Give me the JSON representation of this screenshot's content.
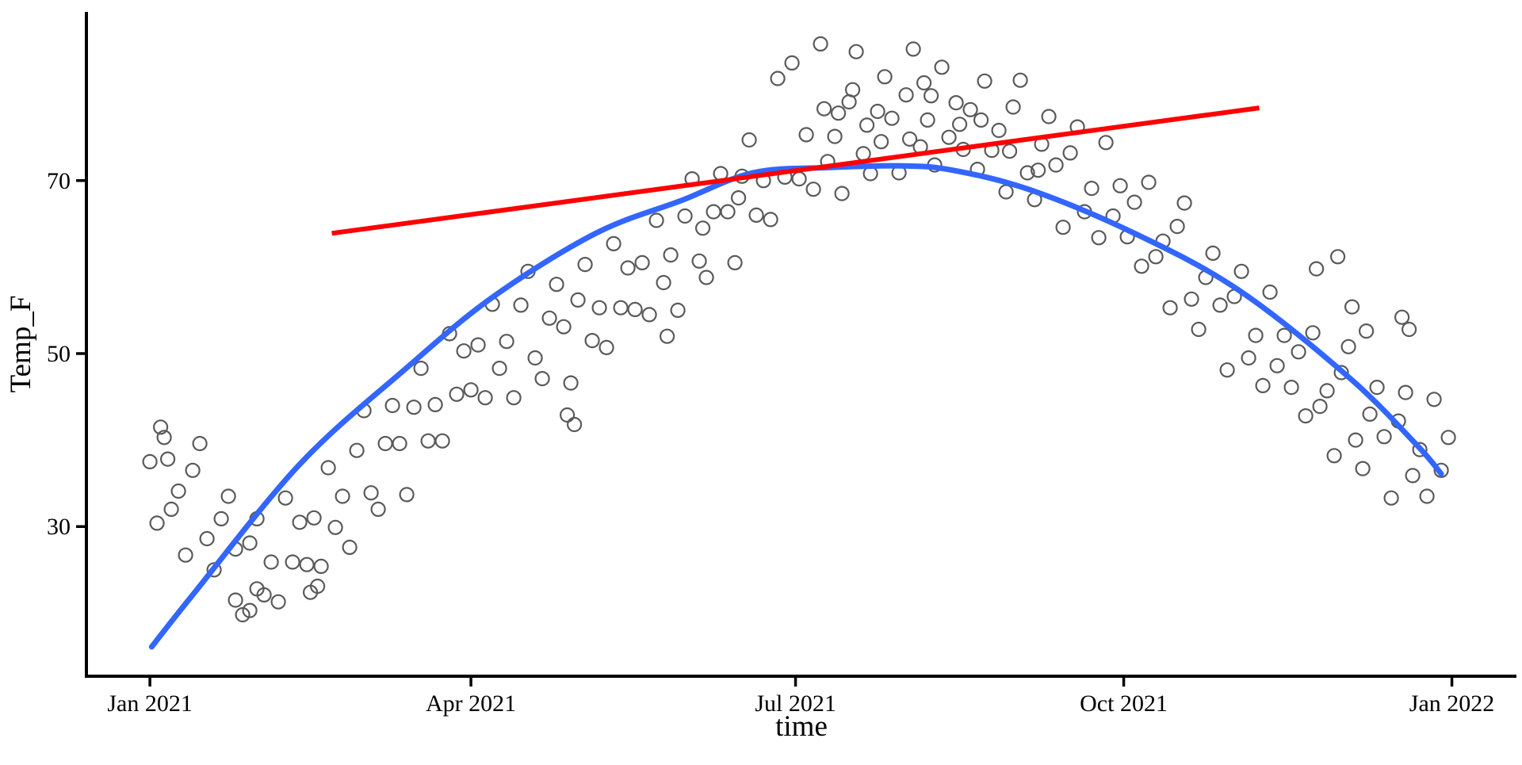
{
  "chart_data": {
    "type": "scatter",
    "title": "",
    "xlabel": "time",
    "ylabel": "Temp_F",
    "grid": false,
    "legend": "none",
    "background": "#FFFFFF",
    "axis_color": "#000000",
    "x_axis": {
      "unit": "days_since_2021-01-01",
      "domain": [
        -17.8,
        383.1
      ],
      "ticks": [
        {
          "day": 0,
          "label": "Jan 2021"
        },
        {
          "day": 90,
          "label": "Apr 2021"
        },
        {
          "day": 181,
          "label": "Jul 2021"
        },
        {
          "day": 273,
          "label": "Oct 2021"
        },
        {
          "day": 365,
          "label": "Jan 2022"
        }
      ]
    },
    "y_axis": {
      "unit": "degrees_F",
      "domain": [
        12.7,
        89.5
      ],
      "ticks": [
        {
          "value": 30,
          "label": "30"
        },
        {
          "value": 50,
          "label": "50"
        },
        {
          "value": 70,
          "label": "70"
        }
      ]
    },
    "series": [
      {
        "name": "daily-temperature-points",
        "kind": "scatter",
        "marker": "open-circle",
        "color": "#5a5a5a",
        "marker_radius": 8.5,
        "marker_stroke": 2.2,
        "points": [
          [
            0,
            37.5
          ],
          [
            2,
            30.4
          ],
          [
            3,
            41.5
          ],
          [
            4,
            40.3
          ],
          [
            5,
            37.8
          ],
          [
            6,
            32.0
          ],
          [
            8,
            34.1
          ],
          [
            10,
            26.7
          ],
          [
            12,
            36.5
          ],
          [
            14,
            39.6
          ],
          [
            16,
            28.6
          ],
          [
            18,
            25.0
          ],
          [
            20,
            30.9
          ],
          [
            22,
            33.5
          ],
          [
            24,
            27.4
          ],
          [
            24,
            21.5
          ],
          [
            26,
            19.8
          ],
          [
            28,
            28.1
          ],
          [
            28,
            20.3
          ],
          [
            30,
            30.9
          ],
          [
            30,
            22.8
          ],
          [
            32,
            22.1
          ],
          [
            34,
            25.9
          ],
          [
            36,
            21.3
          ],
          [
            38,
            33.3
          ],
          [
            40,
            25.9
          ],
          [
            42,
            30.5
          ],
          [
            44,
            25.6
          ],
          [
            45,
            22.4
          ],
          [
            46,
            31.0
          ],
          [
            47,
            23.1
          ],
          [
            48,
            25.4
          ],
          [
            50,
            36.8
          ],
          [
            52,
            29.9
          ],
          [
            54,
            33.5
          ],
          [
            56,
            27.6
          ],
          [
            58,
            38.8
          ],
          [
            60,
            43.4
          ],
          [
            62,
            33.9
          ],
          [
            64,
            32.0
          ],
          [
            66,
            39.6
          ],
          [
            68,
            44.0
          ],
          [
            70,
            39.6
          ],
          [
            72,
            33.7
          ],
          [
            74,
            43.8
          ],
          [
            76,
            48.3
          ],
          [
            78,
            39.9
          ],
          [
            80,
            44.1
          ],
          [
            82,
            39.9
          ],
          [
            84,
            52.3
          ],
          [
            86,
            45.3
          ],
          [
            88,
            50.3
          ],
          [
            90,
            45.8
          ],
          [
            92,
            51.0
          ],
          [
            94,
            44.9
          ],
          [
            96,
            55.7
          ],
          [
            98,
            48.3
          ],
          [
            100,
            51.4
          ],
          [
            102,
            44.9
          ],
          [
            104,
            55.6
          ],
          [
            106,
            59.5
          ],
          [
            108,
            49.5
          ],
          [
            110,
            47.1
          ],
          [
            112,
            54.1
          ],
          [
            114,
            58.0
          ],
          [
            116,
            53.1
          ],
          [
            117,
            42.9
          ],
          [
            118,
            46.6
          ],
          [
            119,
            41.8
          ],
          [
            120,
            56.2
          ],
          [
            122,
            60.3
          ],
          [
            124,
            51.5
          ],
          [
            126,
            55.3
          ],
          [
            128,
            50.7
          ],
          [
            130,
            62.7
          ],
          [
            132,
            55.3
          ],
          [
            134,
            59.9
          ],
          [
            136,
            55.1
          ],
          [
            138,
            60.5
          ],
          [
            140,
            54.5
          ],
          [
            142,
            65.4
          ],
          [
            144,
            58.2
          ],
          [
            145,
            52.0
          ],
          [
            146,
            61.4
          ],
          [
            148,
            55.0
          ],
          [
            150,
            65.9
          ],
          [
            152,
            70.2
          ],
          [
            154,
            60.7
          ],
          [
            155,
            64.5
          ],
          [
            156,
            58.8
          ],
          [
            158,
            66.4
          ],
          [
            160,
            70.8
          ],
          [
            162,
            66.4
          ],
          [
            164,
            60.5
          ],
          [
            165,
            68.0
          ],
          [
            166,
            70.5
          ],
          [
            168,
            74.7
          ],
          [
            170,
            66.0
          ],
          [
            172,
            70.0
          ],
          [
            174,
            65.5
          ],
          [
            176,
            81.8
          ],
          [
            178,
            70.4
          ],
          [
            180,
            83.6
          ],
          [
            182,
            70.2
          ],
          [
            184,
            75.3
          ],
          [
            186,
            69.0
          ],
          [
            188,
            85.8
          ],
          [
            189,
            78.3
          ],
          [
            190,
            72.2
          ],
          [
            192,
            75.1
          ],
          [
            193,
            77.8
          ],
          [
            194,
            68.5
          ],
          [
            196,
            79.1
          ],
          [
            197,
            80.5
          ],
          [
            198,
            84.9
          ],
          [
            200,
            73.1
          ],
          [
            201,
            76.4
          ],
          [
            202,
            70.8
          ],
          [
            204,
            78.0
          ],
          [
            205,
            74.5
          ],
          [
            206,
            82.0
          ],
          [
            208,
            77.2
          ],
          [
            210,
            70.9
          ],
          [
            212,
            79.9
          ],
          [
            213,
            74.8
          ],
          [
            214,
            85.2
          ],
          [
            216,
            73.9
          ],
          [
            217,
            81.3
          ],
          [
            218,
            77.0
          ],
          [
            219,
            79.8
          ],
          [
            220,
            71.8
          ],
          [
            222,
            83.1
          ],
          [
            224,
            75.0
          ],
          [
            226,
            79.0
          ],
          [
            227,
            76.5
          ],
          [
            228,
            73.6
          ],
          [
            230,
            78.2
          ],
          [
            232,
            71.3
          ],
          [
            233,
            77.0
          ],
          [
            234,
            81.5
          ],
          [
            236,
            73.5
          ],
          [
            238,
            75.8
          ],
          [
            240,
            68.7
          ],
          [
            241,
            73.4
          ],
          [
            242,
            78.5
          ],
          [
            244,
            81.6
          ],
          [
            246,
            70.9
          ],
          [
            248,
            67.8
          ],
          [
            249,
            71.2
          ],
          [
            250,
            74.2
          ],
          [
            252,
            77.4
          ],
          [
            254,
            71.8
          ],
          [
            256,
            64.6
          ],
          [
            258,
            73.2
          ],
          [
            260,
            76.2
          ],
          [
            262,
            66.4
          ],
          [
            264,
            69.1
          ],
          [
            266,
            63.4
          ],
          [
            268,
            74.4
          ],
          [
            270,
            65.9
          ],
          [
            272,
            69.4
          ],
          [
            274,
            63.5
          ],
          [
            276,
            67.5
          ],
          [
            278,
            60.1
          ],
          [
            280,
            69.8
          ],
          [
            282,
            61.2
          ],
          [
            284,
            63.0
          ],
          [
            286,
            55.3
          ],
          [
            288,
            64.7
          ],
          [
            290,
            67.4
          ],
          [
            292,
            56.3
          ],
          [
            294,
            52.8
          ],
          [
            296,
            58.8
          ],
          [
            298,
            61.6
          ],
          [
            300,
            55.6
          ],
          [
            302,
            48.1
          ],
          [
            304,
            56.6
          ],
          [
            306,
            59.5
          ],
          [
            308,
            49.5
          ],
          [
            310,
            52.1
          ],
          [
            312,
            46.3
          ],
          [
            314,
            57.1
          ],
          [
            316,
            48.6
          ],
          [
            318,
            52.1
          ],
          [
            320,
            46.1
          ],
          [
            322,
            50.2
          ],
          [
            324,
            42.8
          ],
          [
            326,
            52.4
          ],
          [
            327,
            59.8
          ],
          [
            328,
            43.9
          ],
          [
            330,
            45.7
          ],
          [
            332,
            38.2
          ],
          [
            333,
            61.2
          ],
          [
            334,
            47.8
          ],
          [
            336,
            50.8
          ],
          [
            337,
            55.4
          ],
          [
            338,
            40.0
          ],
          [
            340,
            36.7
          ],
          [
            341,
            52.6
          ],
          [
            342,
            43.0
          ],
          [
            344,
            46.1
          ],
          [
            346,
            40.4
          ],
          [
            348,
            33.3
          ],
          [
            350,
            42.2
          ],
          [
            351,
            54.2
          ],
          [
            352,
            45.5
          ],
          [
            353,
            52.8
          ],
          [
            354,
            35.9
          ],
          [
            356,
            38.9
          ],
          [
            358,
            33.5
          ],
          [
            360,
            44.7
          ],
          [
            362,
            36.5
          ],
          [
            364,
            40.3
          ]
        ]
      },
      {
        "name": "smooth-seasonal-fit",
        "kind": "smooth-line",
        "color": "#3366FF",
        "stroke_width": 7,
        "points": [
          [
            0.5,
            16.1
          ],
          [
            12,
            22.1
          ],
          [
            42,
            37.2
          ],
          [
            71,
            48.0
          ],
          [
            96,
            56.5
          ],
          [
            125,
            63.9
          ],
          [
            149,
            67.7
          ],
          [
            169,
            70.9
          ],
          [
            190,
            71.5
          ],
          [
            211,
            71.7
          ],
          [
            225,
            71.2
          ],
          [
            247,
            68.9
          ],
          [
            276,
            63.9
          ],
          [
            305,
            57.4
          ],
          [
            336,
            47.3
          ],
          [
            355,
            39.5
          ],
          [
            362,
            36.1
          ]
        ]
      },
      {
        "name": "linear-fit",
        "kind": "straight-line",
        "color": "#FF0000",
        "stroke_width": 6,
        "points": [
          [
            51,
            63.9
          ],
          [
            311,
            78.4
          ]
        ]
      }
    ]
  }
}
